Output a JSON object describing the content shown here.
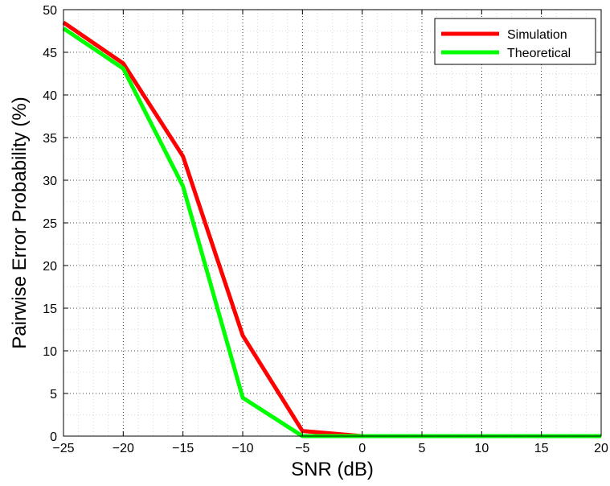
{
  "chart_data": {
    "type": "line",
    "title": "",
    "xlabel": "SNR (dB)",
    "ylabel": "Pairwise Error Probability (%)",
    "xlim": [
      -25,
      20
    ],
    "ylim": [
      0,
      50
    ],
    "x_ticks": [
      -25,
      -20,
      -15,
      -10,
      -5,
      0,
      5,
      10,
      15,
      20
    ],
    "x_tick_labels": [
      "−25",
      "−20",
      "−15",
      "−10",
      "−5",
      "0",
      "5",
      "10",
      "15",
      "20"
    ],
    "y_ticks": [
      0,
      5,
      10,
      15,
      20,
      25,
      30,
      35,
      40,
      45,
      50
    ],
    "y_tick_labels": [
      "0",
      "5",
      "10",
      "15",
      "20",
      "25",
      "30",
      "35",
      "40",
      "45",
      "50"
    ],
    "grid": true,
    "minor_grid": true,
    "legend_position": "top-right",
    "x": [
      -25,
      -20,
      -15,
      -10,
      -5,
      0,
      5,
      10,
      15,
      20
    ],
    "series": [
      {
        "name": "Simulation",
        "color": "#ff0000",
        "values": [
          48.5,
          43.7,
          32.8,
          11.8,
          0.6,
          0.0,
          0.0,
          0.0,
          0.0,
          0.0
        ]
      },
      {
        "name": "Theoretical",
        "color": "#00ff00",
        "values": [
          47.8,
          43.1,
          29.3,
          4.5,
          0.0,
          0.0,
          0.0,
          0.0,
          0.0,
          0.0
        ]
      }
    ]
  }
}
